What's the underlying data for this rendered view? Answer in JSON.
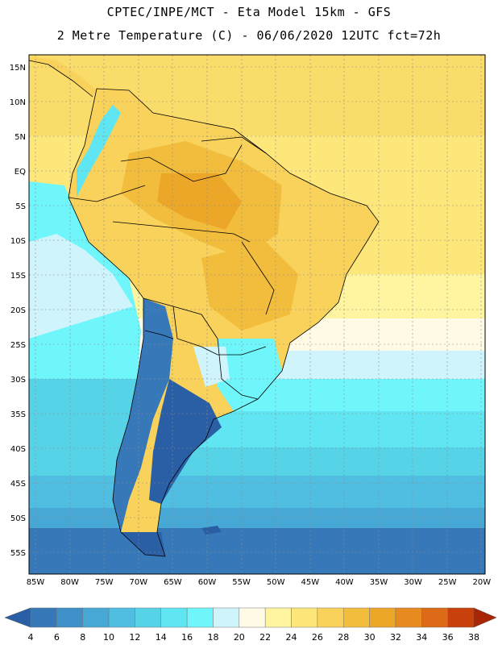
{
  "title_line1": "CPTEC/INPE/MCT  -   Eta Model 15km  -  GFS",
  "title_line2": "2 Metre Temperature (C) - 06/06/2020 12UTC fct=72h",
  "lat_labels": [
    "15N",
    "10N",
    "5N",
    "EQ",
    "5S",
    "10S",
    "15S",
    "20S",
    "25S",
    "30S",
    "35S",
    "40S",
    "45S",
    "50S",
    "55S"
  ],
  "lon_labels": [
    "85W",
    "80W",
    "75W",
    "70W",
    "65W",
    "60W",
    "55W",
    "50W",
    "45W",
    "40W",
    "35W",
    "30W",
    "25W",
    "20W"
  ],
  "colorbar": {
    "values": [
      "4",
      "6",
      "8",
      "10",
      "12",
      "14",
      "16",
      "18",
      "20",
      "22",
      "24",
      "26",
      "28",
      "30",
      "32",
      "34",
      "36",
      "38"
    ],
    "colors": [
      "#2a5fa6",
      "#3778b9",
      "#3f8fc8",
      "#47a8d6",
      "#50bee0",
      "#57d3e8",
      "#5fe6f2",
      "#6ff6fb",
      "#cff4fb",
      "#fffae6",
      "#fff5a0",
      "#fde67a",
      "#f8d25a",
      "#f2bd3c",
      "#eda728",
      "#e78a1f",
      "#dd6a16",
      "#c8400c",
      "#a82606"
    ]
  }
}
